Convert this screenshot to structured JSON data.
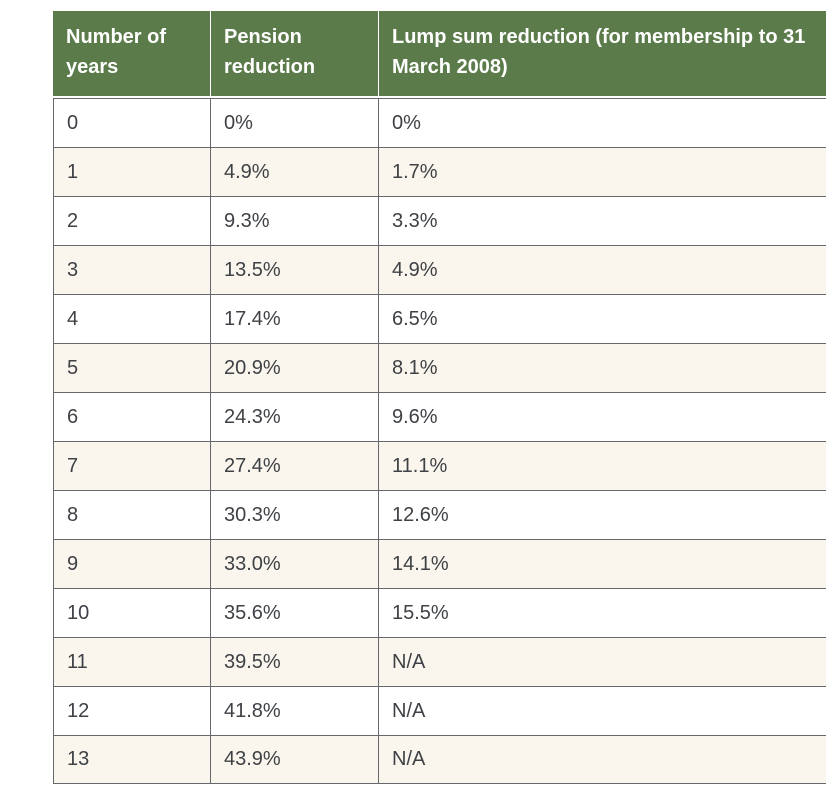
{
  "chart_data": {
    "type": "table",
    "columns": [
      "Number of years",
      "Pension reduction",
      "Lump sum reduction (for membership to 31 March 2008)"
    ],
    "rows": [
      [
        "0",
        "0%",
        "0%"
      ],
      [
        "1",
        "4.9%",
        "1.7%"
      ],
      [
        "2",
        "9.3%",
        "3.3%"
      ],
      [
        "3",
        "13.5%",
        "4.9%"
      ],
      [
        "4",
        "17.4%",
        "6.5%"
      ],
      [
        "5",
        "20.9%",
        "8.1%"
      ],
      [
        "6",
        "24.3%",
        "9.6%"
      ],
      [
        "7",
        "27.4%",
        "11.1%"
      ],
      [
        "8",
        "30.3%",
        "12.6%"
      ],
      [
        "9",
        "33.0%",
        "14.1%"
      ],
      [
        "10",
        "35.6%",
        "15.5%"
      ],
      [
        "11",
        "39.5%",
        "N/A"
      ],
      [
        "12",
        "41.8%",
        "N/A"
      ],
      [
        "13",
        "43.9%",
        "N/A"
      ]
    ],
    "layout": {
      "header_position": "top",
      "grid": true,
      "alternating_rows": true
    },
    "colors": {
      "header_bg": "#5c7b4a",
      "header_text": "#ffffff",
      "row_bg": "#ffffff",
      "row_alt_bg": "#faf6ed",
      "border": "#65686c",
      "body_text": "#3e4145"
    }
  }
}
